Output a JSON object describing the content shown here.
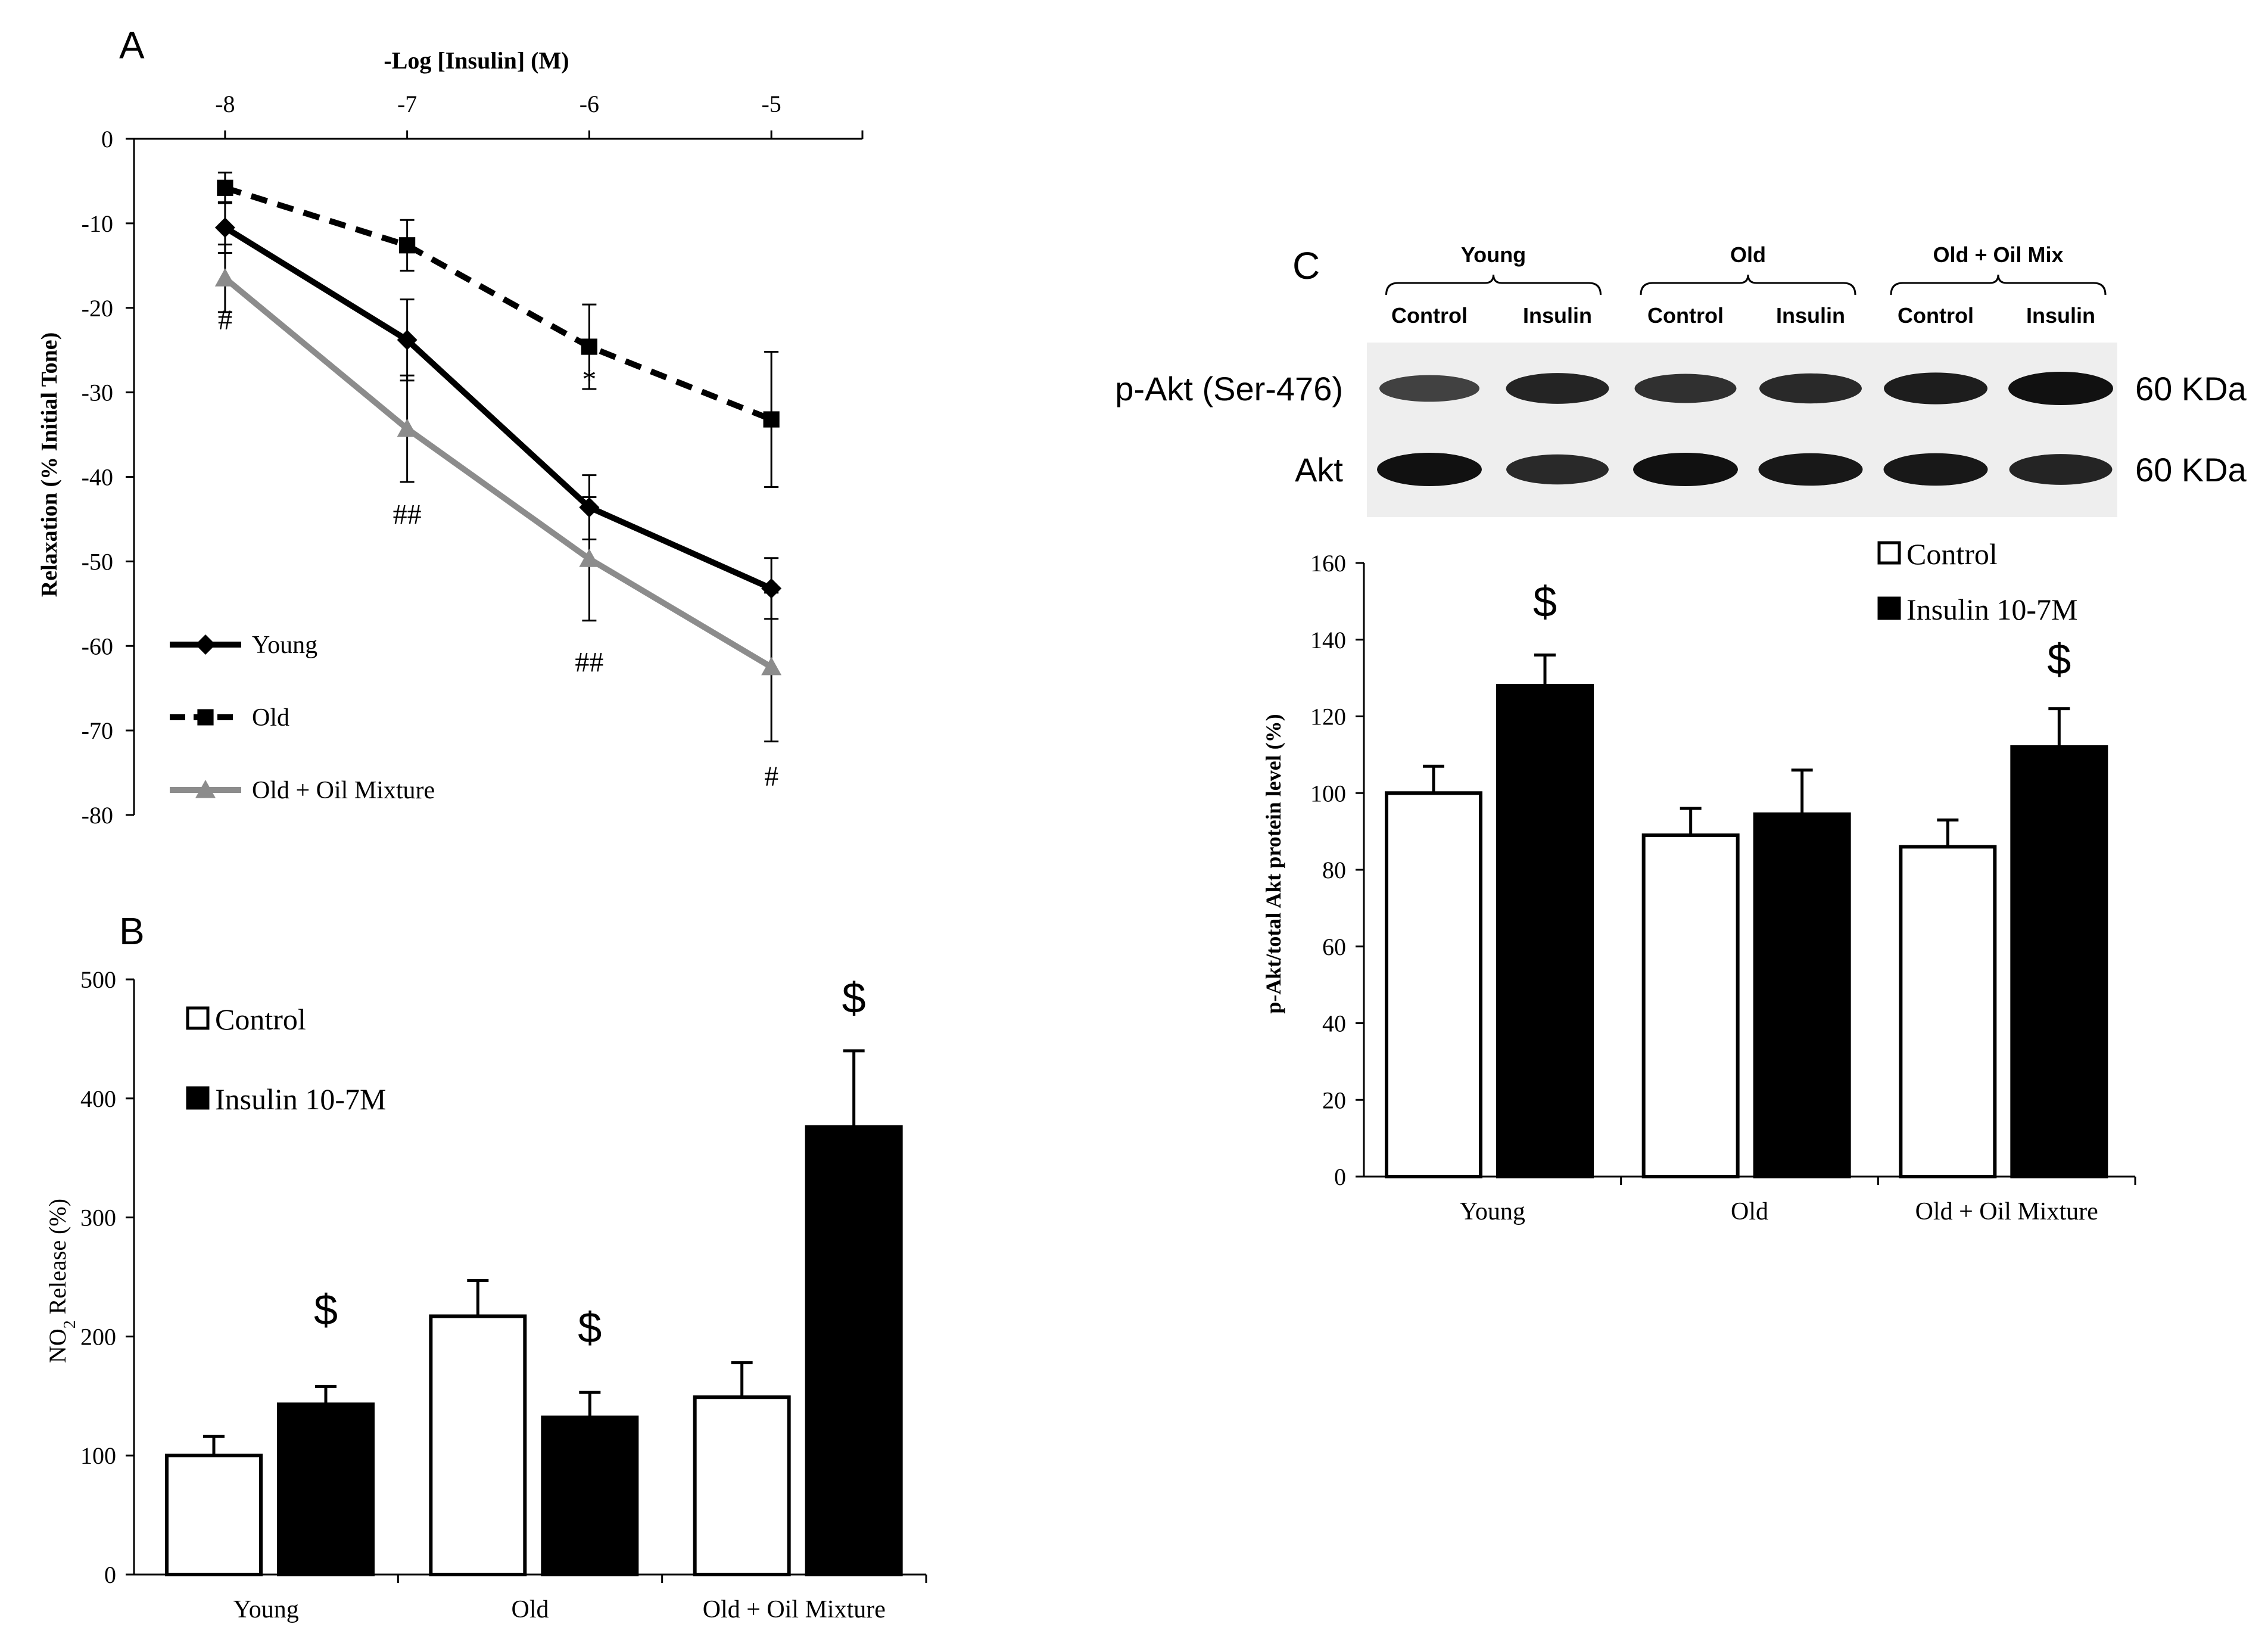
{
  "colors": {
    "axis": "#000000",
    "young": "#000000",
    "old": "#000000",
    "oil": "#8c8c8c",
    "control_fill": "#ffffff",
    "insulin_fill": "#000000",
    "blot_bg": "#eeeeee",
    "band": "#111111"
  },
  "chart_data": [
    {
      "panel": "A",
      "type": "line",
      "title": "-Log [Insulin] (M)",
      "xlabel": "-Log [Insulin] (M)",
      "ylabel": "Relaxation (% Initial Tone)",
      "x": [
        -8,
        -7,
        -6,
        -5
      ],
      "x_tick_labels": [
        "-8",
        "-7",
        "-6",
        "-5"
      ],
      "y_ticks": [
        0,
        -10,
        -20,
        -30,
        -40,
        -50,
        -60,
        -70,
        -80
      ],
      "y_tick_labels": [
        "0",
        "-10",
        "-20",
        "-30",
        "-40",
        "-50",
        "-60",
        "-70",
        "-80"
      ],
      "ylim": [
        -80,
        0
      ],
      "xlim": [
        -8.5,
        -4.5
      ],
      "series": [
        {
          "name": "Young",
          "legend_label": "Young",
          "style": "solid",
          "marker": "diamond",
          "values": [
            -10.5,
            -23.8,
            -43.6,
            -53.2
          ],
          "err": [
            3.0,
            4.8,
            3.8,
            3.6
          ]
        },
        {
          "name": "Old",
          "legend_label": "Old",
          "style": "dashed",
          "marker": "square",
          "values": [
            -5.8,
            -12.6,
            -24.6,
            -33.2
          ],
          "err": [
            1.8,
            3.0,
            5.0,
            8.0
          ]
        },
        {
          "name": "Old + Oil Mixture",
          "legend_label": "Old + Oil Mixture",
          "style": "solid",
          "marker": "triangle",
          "values": [
            -16.5,
            -34.3,
            -49.7,
            -62.5
          ],
          "err": [
            4.0,
            6.3,
            7.3,
            8.8
          ]
        }
      ],
      "annotations": [
        {
          "text": "#",
          "x": -8,
          "y": -21.5
        },
        {
          "text": "##",
          "x": -7,
          "y": -44.5
        },
        {
          "text": "*",
          "x": -6,
          "y": -28.5
        },
        {
          "text": "##",
          "x": -6,
          "y": -62.0
        },
        {
          "text": "#",
          "x": -5,
          "y": -75.5
        }
      ]
    },
    {
      "panel": "B",
      "type": "bar",
      "categories": [
        "Young",
        "Old",
        "Old + Oil Mixture"
      ],
      "ylabel": "NO2 Release (%)",
      "ylabel_main": "NO",
      "ylabel_sub": "2",
      "ylabel_rest": " Release (%)",
      "y_ticks": [
        0,
        100,
        200,
        300,
        400,
        500
      ],
      "y_tick_labels": [
        "0",
        "100",
        "200",
        "300",
        "400",
        "500"
      ],
      "ylim": [
        0,
        500
      ],
      "legend": [
        "Control",
        "Insulin 10-7M"
      ],
      "series": [
        {
          "name": "Control",
          "values": [
            100,
            217,
            149
          ],
          "err": [
            16,
            30,
            29
          ]
        },
        {
          "name": "Insulin 10-7M",
          "values": [
            143,
            132,
            376
          ],
          "err": [
            15,
            21,
            64
          ]
        }
      ],
      "annotations": [
        {
          "text": "$",
          "category": "Young",
          "series": "Insulin 10-7M",
          "y": 210
        },
        {
          "text": "$",
          "category": "Old",
          "series": "Insulin 10-7M",
          "y": 195
        },
        {
          "text": "$",
          "category": "Old + Oil Mixture",
          "series": "Insulin 10-7M",
          "y": 472
        }
      ]
    },
    {
      "panel": "C",
      "type": "bar",
      "categories": [
        "Young",
        "Old",
        "Old + Oil Mixture"
      ],
      "ylabel": "p-Akt/total Akt protein level (%)",
      "y_ticks": [
        0,
        20,
        40,
        60,
        80,
        100,
        120,
        140,
        160
      ],
      "y_tick_labels": [
        "0",
        "20",
        "40",
        "60",
        "80",
        "100",
        "120",
        "140",
        "160"
      ],
      "ylim": [
        0,
        160
      ],
      "legend": [
        "Control",
        "Insulin 10-7M"
      ],
      "series": [
        {
          "name": "Control",
          "values": [
            100,
            89,
            86
          ],
          "err": [
            7,
            7,
            7
          ]
        },
        {
          "name": "Insulin 10-7M",
          "values": [
            128,
            94.5,
            112
          ],
          "err": [
            8,
            11.5,
            10
          ]
        }
      ],
      "annotations": [
        {
          "text": "$",
          "category": "Young",
          "series": "Insulin 10-7M",
          "y": 146
        },
        {
          "text": "$",
          "category": "Old + Oil Mixture",
          "series": "Insulin 10-7M",
          "y": 131
        }
      ]
    }
  ],
  "blot": {
    "groups": [
      "Young",
      "Old",
      "Old + Oil Mix"
    ],
    "lanes": [
      "Control",
      "Insulin",
      "Control",
      "Insulin",
      "Control",
      "Insulin"
    ],
    "rows": [
      {
        "label": "p-Akt (Ser-476)",
        "size": "60 KDa",
        "intensity": [
          0.6,
          0.85,
          0.75,
          0.8,
          0.9,
          1.0
        ]
      },
      {
        "label": "Akt",
        "size": "60 KDa",
        "intensity": [
          1.0,
          0.8,
          1.0,
          0.95,
          0.95,
          0.85
        ]
      }
    ]
  },
  "panel_letters": {
    "a": "A",
    "b": "B",
    "c": "C"
  }
}
